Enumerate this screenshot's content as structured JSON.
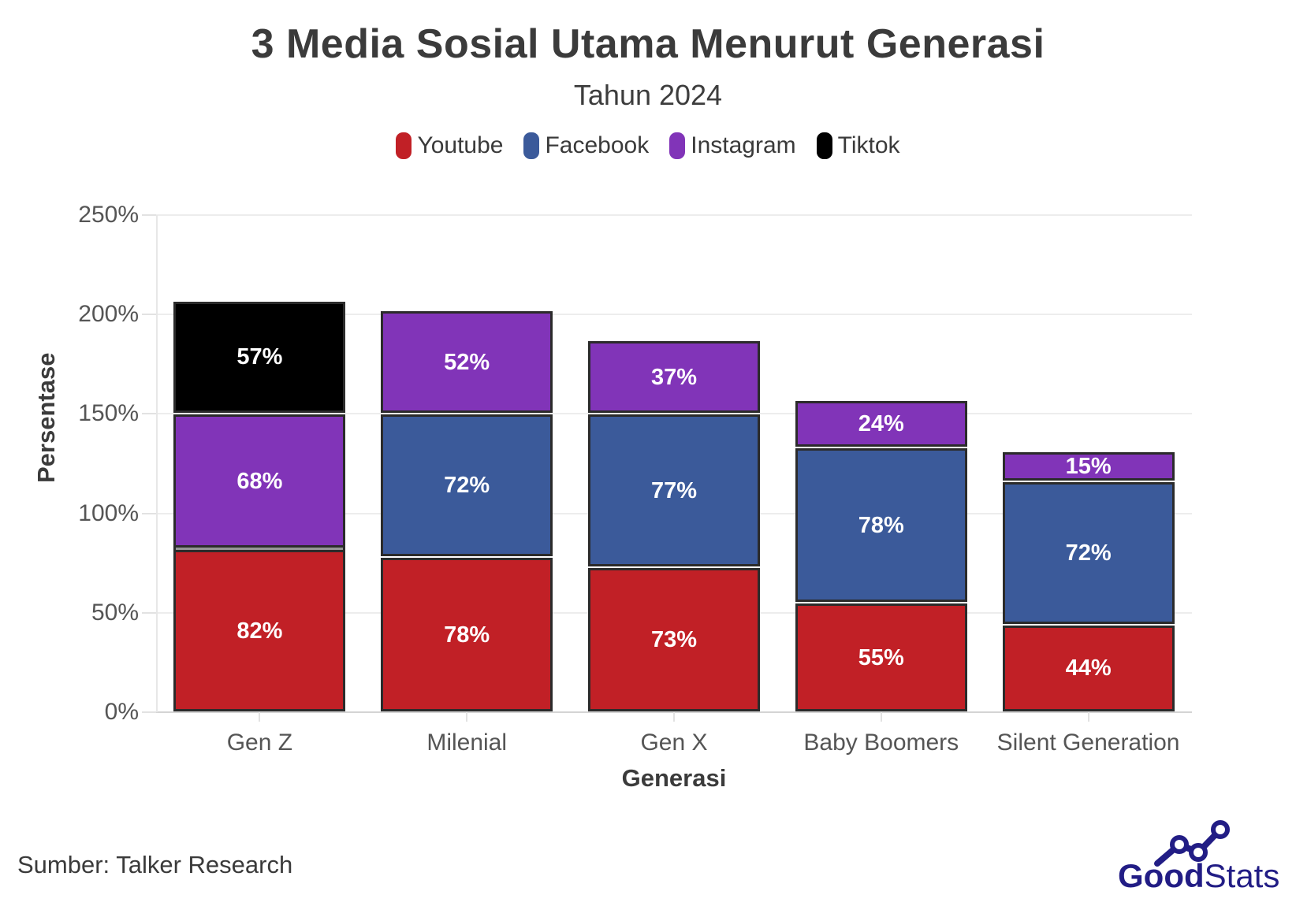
{
  "header": {
    "title": "3 Media Sosial Utama Menurut Generasi",
    "subtitle": "Tahun 2024"
  },
  "legend": {
    "items": [
      {
        "label": "Youtube",
        "color": "#c12026"
      },
      {
        "label": "Facebook",
        "color": "#3b5a9a"
      },
      {
        "label": "Instagram",
        "color": "#8134b8"
      },
      {
        "label": "Tiktok",
        "color": "#000000"
      }
    ]
  },
  "chart_data": {
    "type": "bar",
    "stacked": true,
    "title": "3 Media Sosial Utama Menurut Generasi",
    "subtitle": "Tahun 2024",
    "xlabel": "Generasi",
    "ylabel": "Persentase",
    "ylim": [
      0,
      250
    ],
    "grid": "horizontal",
    "legend_position": "top",
    "value_suffix": "%",
    "y_ticks": [
      {
        "value": 0,
        "label": "0%"
      },
      {
        "value": 50,
        "label": "50%"
      },
      {
        "value": 100,
        "label": "100%"
      },
      {
        "value": 150,
        "label": "150%"
      },
      {
        "value": 200,
        "label": "200%"
      },
      {
        "value": 250,
        "label": "250%"
      }
    ],
    "categories": [
      "Gen Z",
      "Milenial",
      "Gen X",
      "Baby Boomers",
      "Silent Generation"
    ],
    "series": [
      {
        "name": "Youtube",
        "color": "#c12026",
        "values": [
          82,
          78,
          73,
          55,
          44
        ]
      },
      {
        "name": "Facebook",
        "color": "#3b5a9a",
        "values": [
          0,
          72,
          77,
          78,
          72
        ]
      },
      {
        "name": "Instagram",
        "color": "#8134b8",
        "values": [
          68,
          52,
          37,
          24,
          15
        ]
      },
      {
        "name": "Tiktok",
        "color": "#000000",
        "values": [
          57,
          0,
          0,
          0,
          0
        ]
      }
    ]
  },
  "footer": {
    "source": "Sumber: Talker Research",
    "logo": {
      "bold": "Good",
      "light": "Stats"
    }
  }
}
